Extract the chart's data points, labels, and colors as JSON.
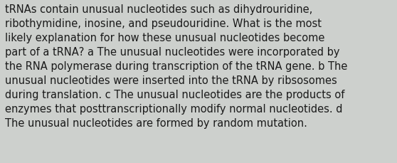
{
  "background_color": "#cdd0cd",
  "text_color": "#1a1a1a",
  "font_size": 10.5,
  "font_family": "DejaVu Sans",
  "lines": [
    "tRNAs contain unusual nucleotides such as dihydrouridine,",
    "ribothymidine, inosine, and pseudouridine. What is the most",
    "likely explanation for how these unusual nucleotides become",
    "part of a tRNA? a The unusual nucleotides were incorporated by",
    "the RNA polymerase during transcription of the tRNA gene. b The",
    "unusual nucleotides were inserted into the tRNA by ribsosomes",
    "during translation. c The unusual nucleotides are the products of",
    "enzymes that posttranscriptionally modify normal nucleotides. d",
    "The unusual nucleotides are formed by random mutation."
  ],
  "fig_width": 5.58,
  "fig_height": 2.3,
  "dpi": 100
}
